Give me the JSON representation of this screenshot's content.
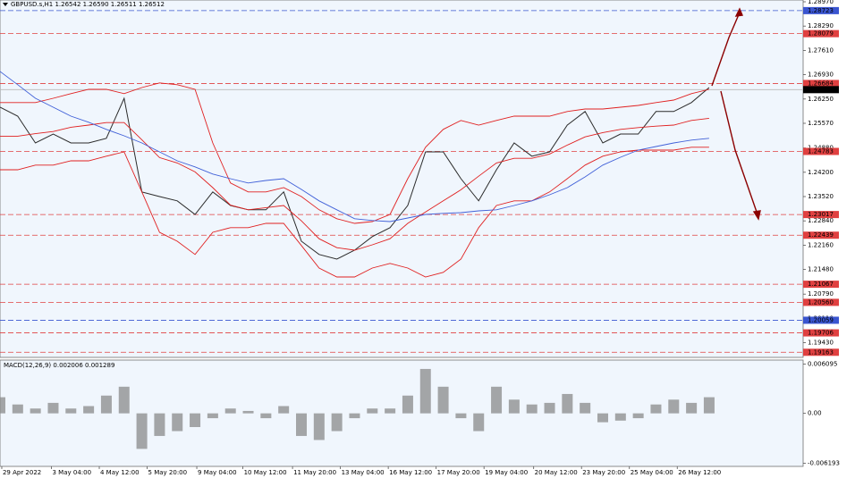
{
  "chart_data": [
    {
      "type": "line",
      "title": "GBPUSD.s,H1  1.26542 1.26590 1.26511 1.26512",
      "x": [
        0,
        1,
        2,
        3,
        4,
        5,
        6,
        7,
        8,
        9,
        10,
        11,
        12,
        13,
        14,
        15,
        16,
        17,
        18,
        19,
        20,
        21,
        22,
        23,
        24,
        25,
        26,
        27,
        28,
        29,
        30,
        31,
        32,
        33,
        34,
        35,
        36,
        37,
        38,
        39,
        40
      ],
      "xlim": [
        0,
        45.3
      ],
      "ylim": [
        1.1902,
        1.2902
      ],
      "yticks": [
        {
          "value": 1.2897,
          "label": "1.28970"
        },
        {
          "value": 1.2829,
          "label": "1.28290"
        },
        {
          "value": 1.2761,
          "label": "1.27610"
        },
        {
          "value": 1.2693,
          "label": "1.26930"
        },
        {
          "value": 1.2625,
          "label": "1.26250"
        },
        {
          "value": 1.2557,
          "label": "1.25570"
        },
        {
          "value": 1.2488,
          "label": "1.24880"
        },
        {
          "value": 1.242,
          "label": "1.24200"
        },
        {
          "value": 1.2352,
          "label": "1.23520"
        },
        {
          "value": 1.2284,
          "label": "1.22840"
        },
        {
          "value": 1.2216,
          "label": "1.22160"
        },
        {
          "value": 1.2148,
          "label": "1.21480"
        },
        {
          "value": 1.2079,
          "label": "1.20790"
        },
        {
          "value": 1.2011,
          "label": "1.20110"
        },
        {
          "value": 1.1943,
          "label": "1.19430"
        }
      ],
      "levels": [
        {
          "value": 1.28723,
          "color": "#3a55d0"
        },
        {
          "value": 1.28079,
          "color": "#e04040"
        },
        {
          "value": 1.26684,
          "color": "#e04040"
        },
        {
          "value": 1.24783,
          "color": "#e04040"
        },
        {
          "value": 1.23017,
          "color": "#e04040"
        },
        {
          "value": 1.22439,
          "color": "#e04040"
        },
        {
          "value": 1.21067,
          "color": "#e04040"
        },
        {
          "value": 1.2056,
          "label": "1.20560",
          "color": "#e04040"
        },
        {
          "value": 1.20059,
          "color": "#3a55d0"
        },
        {
          "value": 1.19706,
          "color": "#e04040"
        },
        {
          "value": 1.19163,
          "color": "#e04040"
        }
      ],
      "last_price": 1.26512,
      "series": [
        {
          "color": "#2b2b2b",
          "values": [
            1.2602,
            1.2577,
            1.2502,
            1.2527,
            1.2502,
            1.2502,
            1.2515,
            1.2627,
            1.2365,
            1.2352,
            1.234,
            1.2302,
            1.2365,
            1.2327,
            1.2315,
            1.2315,
            1.2365,
            1.2227,
            1.219,
            1.2177,
            1.2202,
            1.224,
            1.2265,
            1.2327,
            1.2477,
            1.2477,
            1.2402,
            1.234,
            1.2427,
            1.2502,
            1.2465,
            1.2477,
            1.2552,
            1.259,
            1.2502,
            1.2527,
            1.2527,
            1.259,
            1.259,
            1.2615,
            1.2657
          ]
        },
        {
          "color": "#e02020",
          "values": [
            1.2615,
            1.2615,
            1.2615,
            1.2627,
            1.264,
            1.2652,
            1.2652,
            1.264,
            1.2657,
            1.267,
            1.2665,
            1.2652,
            1.2502,
            1.239,
            1.2365,
            1.2365,
            1.2377,
            1.2352,
            1.2315,
            1.229,
            1.2277,
            1.2282,
            1.2302,
            1.2402,
            1.249,
            1.254,
            1.2565,
            1.2552,
            1.2565,
            1.2577,
            1.2577,
            1.2577,
            1.259,
            1.2597,
            1.2597,
            1.2602,
            1.2607,
            1.2615,
            1.2622,
            1.264,
            1.2652
          ]
        },
        {
          "color": "#e02020",
          "values": [
            1.2521,
            1.2521,
            1.2528,
            1.2534,
            1.2546,
            1.2552,
            1.2559,
            1.2559,
            1.2511,
            1.2461,
            1.2446,
            1.2421,
            1.2377,
            1.2328,
            1.2315,
            1.2321,
            1.2327,
            1.2284,
            1.2234,
            1.2209,
            1.2202,
            1.2217,
            1.2234,
            1.2277,
            1.2309,
            1.234,
            1.2371,
            1.2409,
            1.2446,
            1.2459,
            1.2459,
            1.2471,
            1.2496,
            1.2519,
            1.2531,
            1.254,
            1.2545,
            1.2549,
            1.2552,
            1.2565,
            1.2571
          ]
        },
        {
          "color": "#e02020",
          "values": [
            1.2427,
            1.2427,
            1.244,
            1.244,
            1.2452,
            1.2452,
            1.2465,
            1.2477,
            1.2365,
            1.2252,
            1.2227,
            1.219,
            1.2252,
            1.2265,
            1.2265,
            1.2277,
            1.2277,
            1.2215,
            1.2152,
            1.2127,
            1.2127,
            1.2152,
            1.2165,
            1.2152,
            1.2127,
            1.214,
            1.2177,
            1.2265,
            1.2327,
            1.234,
            1.234,
            1.2365,
            1.2402,
            1.244,
            1.2465,
            1.2477,
            1.2482,
            1.2482,
            1.2482,
            1.249,
            1.249
          ]
        },
        {
          "color": "#4060d8",
          "values": [
            1.2702,
            1.2665,
            1.2627,
            1.2602,
            1.2577,
            1.256,
            1.254,
            1.2522,
            1.2502,
            1.2477,
            1.2452,
            1.2435,
            1.2415,
            1.2402,
            1.239,
            1.2397,
            1.2402,
            1.2372,
            1.234,
            1.2315,
            1.229,
            1.2285,
            1.2282,
            1.2292,
            1.2302,
            1.2305,
            1.2307,
            1.2312,
            1.2315,
            1.2327,
            1.234,
            1.2357,
            1.2377,
            1.2407,
            1.244,
            1.2462,
            1.2482,
            1.2492,
            1.2502,
            1.251,
            1.2515
          ]
        }
      ]
    },
    {
      "type": "bar",
      "title": "MACD(12,26,9) 0.002006 0.001289",
      "x": [
        0,
        1,
        2,
        3,
        4,
        5,
        6,
        7,
        8,
        9,
        10,
        11,
        12,
        13,
        14,
        15,
        16,
        17,
        18,
        19,
        20,
        21,
        22,
        23,
        24,
        25,
        26,
        27,
        28,
        29,
        30,
        31,
        32,
        33,
        34,
        35,
        36,
        37,
        38,
        39,
        40
      ],
      "xlim": [
        0,
        45.3
      ],
      "xticks": [
        {
          "value": 0.1,
          "label": "29 Apr 2022"
        },
        {
          "value": 2.9,
          "label": "3 May 04:00"
        },
        {
          "value": 5.6,
          "label": "4 May 12:00"
        },
        {
          "value": 8.3,
          "label": "5 May 20:00"
        },
        {
          "value": 11.1,
          "label": "9 May 04:00"
        },
        {
          "value": 13.7,
          "label": "10 May 12:00"
        },
        {
          "value": 16.5,
          "label": "11 May 20:00"
        },
        {
          "value": 19.2,
          "label": "13 May 04:00"
        },
        {
          "value": 21.9,
          "label": "16 May 12:00"
        },
        {
          "value": 24.6,
          "label": "17 May 20:00"
        },
        {
          "value": 27.3,
          "label": "19 May 04:00"
        },
        {
          "value": 30.1,
          "label": "20 May 12:00"
        },
        {
          "value": 32.8,
          "label": "23 May 20:00"
        },
        {
          "value": 35.5,
          "label": "25 May 04:00"
        },
        {
          "value": 38.2,
          "label": "26 May 12:00"
        }
      ],
      "ylim": [
        -0.0069,
        0.0066
      ],
      "yticks": [
        0.006095,
        {
          "value": 0,
          "label": "0.00"
        },
        -0.006193
      ],
      "color": "#8a8a8a",
      "values": [
        0.002,
        0.0011,
        0.0006,
        0.0013,
        0.0006,
        0.0009,
        0.0022,
        0.0033,
        -0.0044,
        -0.0028,
        -0.0022,
        -0.0017,
        -0.0006,
        0.0006,
        0.0003,
        -0.0006,
        0.0009,
        -0.0028,
        -0.0033,
        -0.0022,
        -0.0006,
        0.0006,
        0.0006,
        0.0022,
        0.0055,
        0.0033,
        -0.0006,
        -0.0022,
        0.0033,
        0.0017,
        0.0011,
        0.0013,
        0.0024,
        0.0013,
        -0.0011,
        -0.0009,
        -0.0006,
        0.0011,
        0.0017,
        0.0013,
        0.002
      ]
    }
  ]
}
